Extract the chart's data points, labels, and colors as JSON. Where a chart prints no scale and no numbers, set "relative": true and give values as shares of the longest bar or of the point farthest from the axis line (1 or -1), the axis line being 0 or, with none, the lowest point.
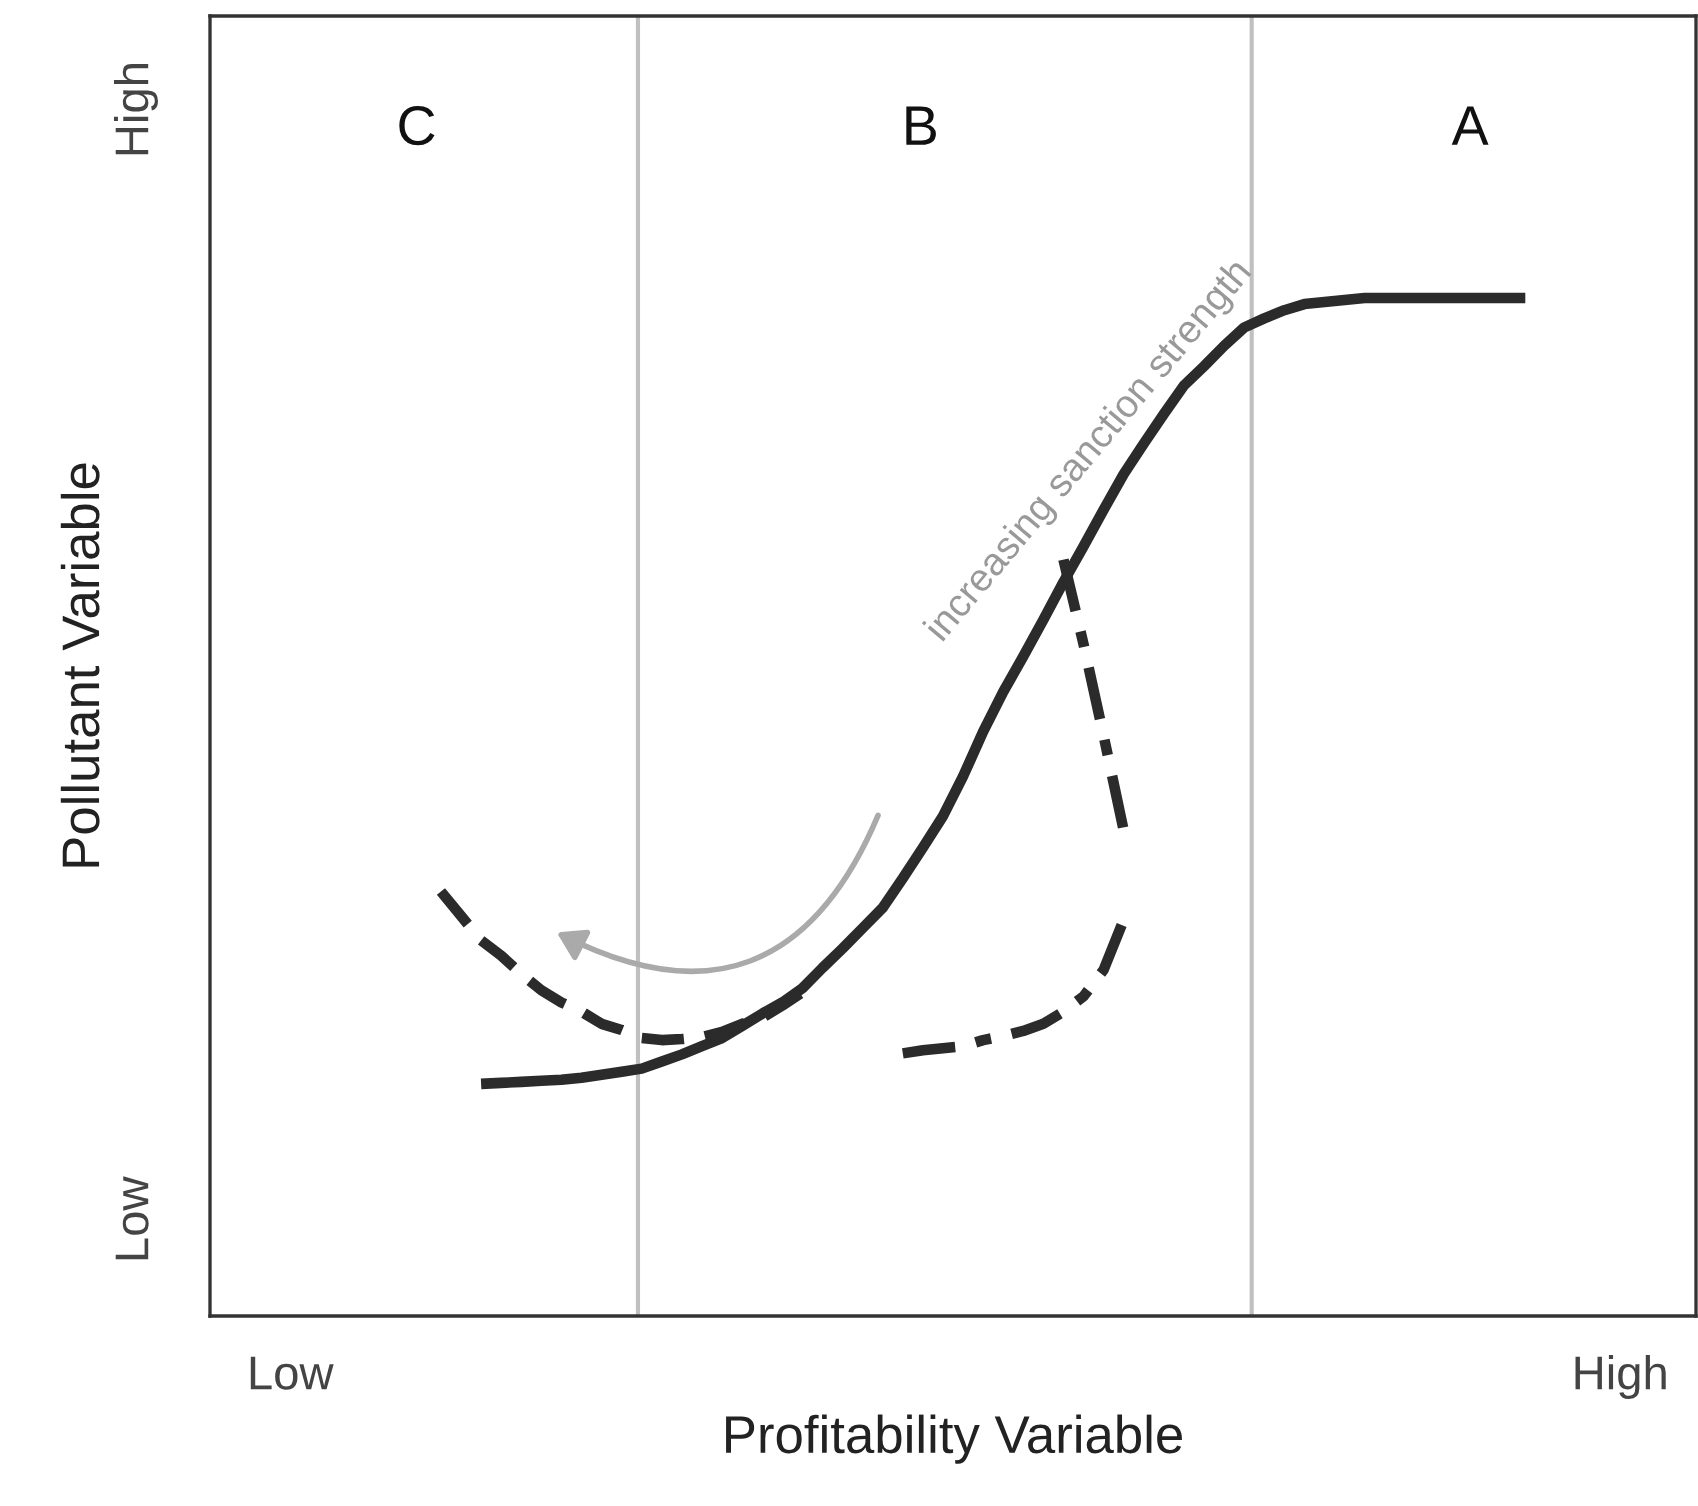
{
  "chart_data": {
    "type": "line",
    "relative": true,
    "xlabel": "Profitability Variable",
    "ylabel": "Pollutant Variable",
    "legend": false,
    "marker": "none",
    "categories": [
      null,
      null,
      null,
      null,
      null,
      null,
      null,
      null,
      null,
      null,
      null,
      null,
      null,
      null,
      null,
      null,
      null,
      null,
      null,
      null,
      null,
      null,
      null,
      null,
      null,
      null,
      null,
      null,
      null,
      null,
      null,
      null,
      null,
      null,
      null,
      null,
      null,
      null,
      null,
      null,
      null,
      null,
      null,
      null,
      null,
      null,
      null,
      null,
      null,
      null,
      null,
      null,
      null,
      null,
      null,
      null,
      null,
      null,
      null,
      null,
      null,
      null,
      null,
      null,
      null,
      null,
      null,
      null,
      null,
      null,
      null,
      null,
      null,
      null
    ],
    "annotations": [
      "Low",
      "High",
      "Low",
      "High",
      "C",
      "B",
      "A",
      "increasing sanction strength"
    ],
    "series": [
      {
        "color": "#2b2b2b",
        "line_style": "solid",
        "values": [
          null,
          null,
          null,
          null,
          null,
          null,
          null,
          null,
          null,
          null,
          null,
          null,
          null,
          0.228,
          0.229,
          0.23,
          0.231,
          0.232,
          0.234,
          0.237,
          0.24,
          0.243,
          0.25,
          0.257,
          0.265,
          0.273,
          0.285,
          0.297,
          0.308,
          0.322,
          0.342,
          0.361,
          0.381,
          0.401,
          0.43,
          0.46,
          0.491,
          0.53,
          0.574,
          0.613,
          0.648,
          0.684,
          0.721,
          0.756,
          0.792,
          0.827,
          0.857,
          0.886,
          0.914,
          0.933,
          0.953,
          0.971,
          0.98,
          0.988,
          0.994,
          0.996,
          0.998,
          1.0,
          1.0,
          1.0,
          1.0,
          1.0,
          1.0,
          1.0,
          1.0,
          1.0,
          null,
          null,
          null,
          null,
          null,
          null,
          null,
          null
        ]
      },
      {
        "color": "#2b2b2b",
        "line_style": "dashed",
        "values": [
          null,
          null,
          null,
          null,
          null,
          null,
          null,
          null,
          null,
          null,
          null,
          0.417,
          0.393,
          0.369,
          0.354,
          0.336,
          0.32,
          0.308,
          0.299,
          0.287,
          0.281,
          0.273,
          0.271,
          0.272,
          0.274,
          0.279,
          0.287,
          0.293,
          0.305,
          0.318,
          null,
          null,
          null,
          null,
          null,
          null,
          null,
          null,
          null,
          null,
          null,
          null,
          null,
          null,
          null,
          null,
          null,
          null,
          null,
          null,
          null,
          null,
          null,
          null,
          null,
          null,
          null,
          null,
          null,
          null,
          null,
          null,
          null,
          null,
          null,
          null,
          null,
          null,
          null,
          null,
          null,
          null,
          null,
          null
        ]
      },
      {
        "color": "#2b2b2b",
        "line_style": "dashdot",
        "values": [
          null,
          null,
          null,
          null,
          null,
          null,
          null,
          null,
          null,
          null,
          null,
          null,
          null,
          null,
          null,
          null,
          null,
          null,
          null,
          null,
          null,
          null,
          null,
          null,
          null,
          null,
          null,
          null,
          null,
          null,
          null,
          null,
          null,
          null,
          0.258,
          0.261,
          0.263,
          0.265,
          0.271,
          0.275,
          0.28,
          0.287,
          0.299,
          0.314,
          0.34,
          0.389,
          null,
          null,
          null,
          null,
          null,
          null,
          null,
          null,
          null,
          null,
          null,
          null,
          null,
          null,
          null,
          null,
          null,
          null,
          null,
          null,
          null,
          null,
          null,
          null,
          null,
          null,
          null,
          null
        ]
      },
      {
        "color": "#2b2b2b",
        "line_style": "dashdot",
        "values": [
          null,
          null,
          null,
          null,
          null,
          null,
          null,
          null,
          null,
          null,
          null,
          null,
          null,
          null,
          null,
          null,
          null,
          null,
          null,
          null,
          null,
          null,
          null,
          null,
          null,
          null,
          null,
          null,
          null,
          null,
          null,
          null,
          null,
          null,
          null,
          null,
          null,
          null,
          null,
          null,
          null,
          null,
          0.743,
          0.66,
          0.57,
          0.477,
          null,
          null,
          null,
          null,
          null,
          null,
          null,
          null,
          null,
          null,
          null,
          null,
          null,
          null,
          null,
          null,
          null,
          null,
          null,
          null,
          null,
          null,
          null,
          null,
          null,
          null,
          null,
          null
        ]
      }
    ]
  }
}
